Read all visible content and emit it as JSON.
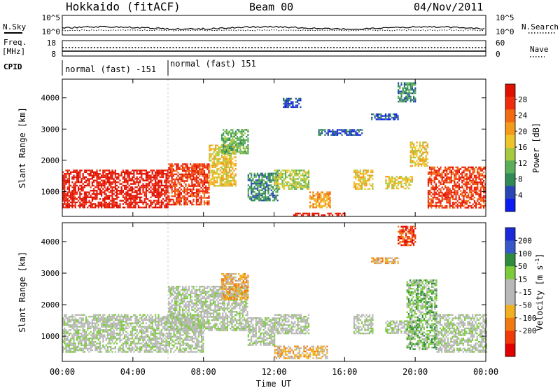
{
  "header": {
    "station": "Hokkaido (fitACF)",
    "beam": "Beam 00",
    "date": "04/Nov/2011"
  },
  "noise_panel": {
    "left_label": "N.Sky",
    "right_label": "N.Search",
    "left_ticks": [
      "10^5",
      "10^0"
    ],
    "right_ticks": [
      "10^5",
      "10^0"
    ]
  },
  "freq_panel": {
    "left_label_1": "Freq.",
    "left_label_2": "[MHz]",
    "right_label": "Nave",
    "left_ticks": [
      "18",
      "8"
    ],
    "right_ticks": [
      "60",
      "0"
    ]
  },
  "cpid_panel": {
    "label": "CPID",
    "segments": [
      "normal (fast) -151",
      "normal (fast) 151"
    ]
  },
  "time_axis": {
    "label": "Time UT",
    "ticks": [
      "00:00",
      "04:00",
      "08:00",
      "12:00",
      "16:00",
      "20:00",
      "00:00"
    ]
  },
  "colors": {
    "power_scale": [
      "#0a1cf0",
      "#2a46b6",
      "#2f8a55",
      "#5caf5a",
      "#a6c93f",
      "#eec42a",
      "#f49a1c",
      "#f26a12",
      "#ef2d0e",
      "#e01000"
    ],
    "velocity_scale": [
      "#1a2ad8",
      "#3858c8",
      "#2e8a3c",
      "#7ccb3a",
      "#b8b8b8",
      "#b8b8b8",
      "#f0b020",
      "#f07a10",
      "#f03a0a",
      "#e00000"
    ]
  },
  "chart_data": [
    {
      "type": "heatmap",
      "name": "power",
      "ylabel": "Slant Range [km]",
      "y_ticks": [
        "1000",
        "2000",
        "3000",
        "4000"
      ],
      "colorbar_label": "Power [dB]",
      "colorbar_ticks": [
        "4",
        "8",
        "12",
        "16",
        "20",
        "24",
        "28"
      ],
      "ylim": [
        200,
        4600
      ],
      "xlim_hours": [
        0,
        24
      ],
      "regions": [
        {
          "t0": 0.0,
          "t1": 6.0,
          "r0": 500,
          "r1": 1700,
          "level": 9
        },
        {
          "t0": 6.0,
          "t1": 8.3,
          "r0": 600,
          "r1": 1900,
          "level": 8
        },
        {
          "t0": 8.3,
          "t1": 9.8,
          "r0": 1200,
          "r1": 2500,
          "level": 5
        },
        {
          "t0": 9.0,
          "t1": 10.5,
          "r0": 2200,
          "r1": 3000,
          "level": 3
        },
        {
          "t0": 10.5,
          "t1": 12.2,
          "r0": 700,
          "r1": 1600,
          "level": 2
        },
        {
          "t0": 13.0,
          "t1": 16.0,
          "r0": 220,
          "r1": 320,
          "level": 9
        },
        {
          "t0": 12.0,
          "t1": 14.0,
          "r0": 1100,
          "r1": 1700,
          "level": 4
        },
        {
          "t0": 14.0,
          "t1": 15.2,
          "r0": 500,
          "r1": 1000,
          "level": 6
        },
        {
          "t0": 16.5,
          "t1": 17.6,
          "r0": 1100,
          "r1": 1700,
          "level": 5
        },
        {
          "t0": 18.3,
          "t1": 19.8,
          "r0": 1100,
          "r1": 1500,
          "level": 5
        },
        {
          "t0": 14.5,
          "t1": 17.0,
          "r0": 2800,
          "r1": 3000,
          "level": 1
        },
        {
          "t0": 17.5,
          "t1": 19.0,
          "r0": 3300,
          "r1": 3500,
          "level": 1
        },
        {
          "t0": 12.5,
          "t1": 13.5,
          "r0": 3700,
          "r1": 4000,
          "level": 1
        },
        {
          "t0": 19.0,
          "t1": 20.0,
          "r0": 3900,
          "r1": 4500,
          "level": 2
        },
        {
          "t0": 19.7,
          "t1": 20.7,
          "r0": 1800,
          "r1": 2600,
          "level": 5
        },
        {
          "t0": 20.7,
          "t1": 24.0,
          "r0": 500,
          "r1": 1800,
          "level": 8
        }
      ]
    },
    {
      "type": "heatmap",
      "name": "velocity",
      "ylabel": "Slant Range [km]",
      "y_ticks": [
        "1000",
        "2000",
        "3000",
        "4000"
      ],
      "colorbar_label": "Velocity [m s",
      "colorbar_label_sup": "-1",
      "colorbar_label_end": "]",
      "colorbar_ticks": [
        "200",
        "100",
        "50",
        "15",
        "-15",
        "-50",
        "-100",
        "-200"
      ],
      "ylim": [
        200,
        4600
      ],
      "xlim_hours": [
        0,
        24
      ],
      "regions": [
        {
          "t0": 0.0,
          "t1": 8.0,
          "r0": 500,
          "r1": 1700,
          "level": 4
        },
        {
          "t0": 6.0,
          "t1": 10.5,
          "r0": 1200,
          "r1": 2600,
          "level": 4
        },
        {
          "t0": 9.0,
          "t1": 10.5,
          "r0": 2200,
          "r1": 3000,
          "level": 6
        },
        {
          "t0": 10.5,
          "t1": 12.0,
          "r0": 700,
          "r1": 1600,
          "level": 4
        },
        {
          "t0": 12.0,
          "t1": 15.0,
          "r0": 300,
          "r1": 700,
          "level": 6
        },
        {
          "t0": 12.0,
          "t1": 14.0,
          "r0": 1100,
          "r1": 1700,
          "level": 4
        },
        {
          "t0": 16.5,
          "t1": 17.6,
          "r0": 1100,
          "r1": 1700,
          "level": 4
        },
        {
          "t0": 18.3,
          "t1": 19.8,
          "r0": 1100,
          "r1": 1500,
          "level": 4
        },
        {
          "t0": 17.5,
          "t1": 19.0,
          "r0": 3300,
          "r1": 3500,
          "level": 6
        },
        {
          "t0": 19.0,
          "t1": 20.0,
          "r0": 3900,
          "r1": 4500,
          "level": 8
        },
        {
          "t0": 19.5,
          "t1": 21.2,
          "r0": 600,
          "r1": 2800,
          "level": 3
        },
        {
          "t0": 21.2,
          "t1": 24.0,
          "r0": 500,
          "r1": 1700,
          "level": 4
        }
      ]
    }
  ]
}
